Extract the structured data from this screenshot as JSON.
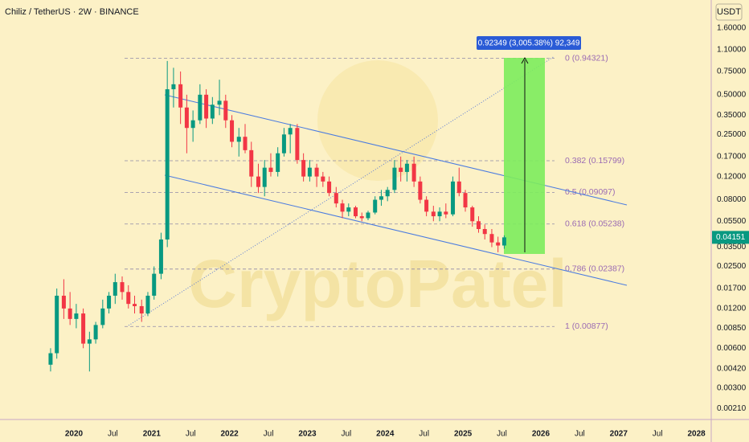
{
  "chart_data": {
    "type": "candlestick",
    "title": "Chiliz / TetherUS · 2W · BINANCE",
    "unit": "USDT",
    "watermark": "CryptoPatel",
    "log_scale": true,
    "up_color": "#089981",
    "down_color": "#f23645",
    "ylim": [
      0.00173,
      2.61
    ],
    "yticks": [
      {
        "value": 1.6,
        "label": "1.60000"
      },
      {
        "value": 1.1,
        "label": "1.10000"
      },
      {
        "value": 0.75,
        "label": "0.75000"
      },
      {
        "value": 0.5,
        "label": "0.50000"
      },
      {
        "value": 0.35,
        "label": "0.35000"
      },
      {
        "value": 0.25,
        "label": "0.25000"
      },
      {
        "value": 0.17,
        "label": "0.17000"
      },
      {
        "value": 0.12,
        "label": "0.12000"
      },
      {
        "value": 0.08,
        "label": "0.08000"
      },
      {
        "value": 0.055,
        "label": "0.05500"
      },
      {
        "value": 0.035,
        "label": "0.03500"
      },
      {
        "value": 0.025,
        "label": "0.02500"
      },
      {
        "value": 0.017,
        "label": "0.01700"
      },
      {
        "value": 0.012,
        "label": "0.01200"
      },
      {
        "value": 0.0085,
        "label": "0.00850"
      },
      {
        "value": 0.006,
        "label": "0.00600"
      },
      {
        "value": 0.0042,
        "label": "0.00420"
      },
      {
        "value": 0.003,
        "label": "0.00300"
      },
      {
        "value": 0.0021,
        "label": "0.00210"
      }
    ],
    "xlim": [
      2019.05,
      2028.19
    ],
    "xticks": [
      2020,
      {
        "value": 2020.5,
        "label": "Jul"
      },
      2021,
      {
        "value": 2021.5,
        "label": "Jul"
      },
      2022,
      {
        "value": 2022.5,
        "label": "Jul"
      },
      2023,
      {
        "value": 2023.5,
        "label": "Jul"
      },
      2024,
      {
        "value": 2024.5,
        "label": "Jul"
      },
      2025,
      {
        "value": 2025.5,
        "label": "Jul"
      },
      2026,
      {
        "value": 2026.5,
        "label": "Jul"
      },
      2027,
      {
        "value": 2027.5,
        "label": "Jul"
      },
      2028
    ],
    "x": [
      2019.7,
      2019.78,
      2019.87,
      2019.95,
      2020.03,
      2020.12,
      2020.2,
      2020.28,
      2020.37,
      2020.45,
      2020.53,
      2020.62,
      2020.7,
      2020.78,
      2020.87,
      2020.95,
      2021.03,
      2021.12,
      2021.2,
      2021.28,
      2021.37,
      2021.45,
      2021.53,
      2021.62,
      2021.7,
      2021.78,
      2021.87,
      2021.95,
      2022.03,
      2022.12,
      2022.2,
      2022.28,
      2022.37,
      2022.45,
      2022.53,
      2022.62,
      2022.7,
      2022.78,
      2022.87,
      2022.95,
      2023.03,
      2023.12,
      2023.2,
      2023.28,
      2023.37,
      2023.45,
      2023.53,
      2023.62,
      2023.7,
      2023.78,
      2023.87,
      2023.95,
      2024.03,
      2024.12,
      2024.2,
      2024.28,
      2024.37,
      2024.45,
      2024.53,
      2024.62,
      2024.7,
      2024.78,
      2024.87,
      2024.95,
      2025.03,
      2025.12,
      2025.2,
      2025.28,
      2025.37,
      2025.45,
      2025.53
    ],
    "open": [
      0.0045,
      0.0055,
      0.015,
      0.012,
      0.01,
      0.011,
      0.0065,
      0.007,
      0.009,
      0.012,
      0.015,
      0.019,
      0.016,
      0.013,
      0.0125,
      0.011,
      0.015,
      0.022,
      0.04,
      0.55,
      0.6,
      0.4,
      0.28,
      0.32,
      0.5,
      0.33,
      0.42,
      0.45,
      0.32,
      0.22,
      0.24,
      0.19,
      0.12,
      0.1,
      0.14,
      0.13,
      0.18,
      0.25,
      0.28,
      0.16,
      0.12,
      0.14,
      0.12,
      0.11,
      0.09,
      0.075,
      0.065,
      0.07,
      0.06,
      0.058,
      0.064,
      0.08,
      0.085,
      0.095,
      0.14,
      0.13,
      0.15,
      0.11,
      0.08,
      0.065,
      0.06,
      0.065,
      0.062,
      0.11,
      0.09,
      0.07,
      0.055,
      0.048,
      0.044,
      0.038,
      0.036
    ],
    "high": [
      0.006,
      0.017,
      0.02,
      0.016,
      0.013,
      0.012,
      0.008,
      0.0095,
      0.014,
      0.016,
      0.022,
      0.021,
      0.018,
      0.015,
      0.014,
      0.016,
      0.025,
      0.045,
      0.9,
      0.8,
      0.75,
      0.5,
      0.38,
      0.6,
      0.55,
      0.48,
      0.65,
      0.5,
      0.35,
      0.28,
      0.3,
      0.22,
      0.15,
      0.16,
      0.18,
      0.2,
      0.28,
      0.3,
      0.3,
      0.18,
      0.16,
      0.15,
      0.13,
      0.12,
      0.1,
      0.08,
      0.075,
      0.072,
      0.064,
      0.066,
      0.085,
      0.095,
      0.1,
      0.16,
      0.17,
      0.16,
      0.17,
      0.12,
      0.085,
      0.072,
      0.07,
      0.075,
      0.12,
      0.14,
      0.095,
      0.072,
      0.06,
      0.052,
      0.048,
      0.042,
      0.043
    ],
    "low": [
      0.004,
      0.005,
      0.01,
      0.009,
      0.0085,
      0.006,
      0.004,
      0.0065,
      0.0085,
      0.011,
      0.013,
      0.014,
      0.012,
      0.011,
      0.0095,
      0.0105,
      0.014,
      0.02,
      0.035,
      0.4,
      0.3,
      0.18,
      0.22,
      0.3,
      0.28,
      0.3,
      0.35,
      0.28,
      0.2,
      0.17,
      0.18,
      0.1,
      0.09,
      0.085,
      0.12,
      0.12,
      0.17,
      0.18,
      0.15,
      0.11,
      0.11,
      0.1,
      0.1,
      0.085,
      0.07,
      0.058,
      0.06,
      0.058,
      0.055,
      0.056,
      0.062,
      0.072,
      0.078,
      0.09,
      0.11,
      0.11,
      0.1,
      0.075,
      0.06,
      0.055,
      0.055,
      0.058,
      0.06,
      0.085,
      0.065,
      0.05,
      0.045,
      0.04,
      0.035,
      0.032,
      0.034
    ],
    "close": [
      0.0055,
      0.015,
      0.012,
      0.01,
      0.011,
      0.0065,
      0.007,
      0.009,
      0.012,
      0.015,
      0.019,
      0.016,
      0.013,
      0.0125,
      0.011,
      0.015,
      0.022,
      0.04,
      0.55,
      0.6,
      0.4,
      0.28,
      0.32,
      0.5,
      0.33,
      0.42,
      0.45,
      0.32,
      0.22,
      0.24,
      0.19,
      0.12,
      0.1,
      0.14,
      0.13,
      0.18,
      0.25,
      0.28,
      0.16,
      0.12,
      0.14,
      0.12,
      0.11,
      0.09,
      0.075,
      0.065,
      0.07,
      0.06,
      0.058,
      0.064,
      0.08,
      0.085,
      0.095,
      0.14,
      0.13,
      0.15,
      0.11,
      0.08,
      0.065,
      0.06,
      0.065,
      0.062,
      0.11,
      0.09,
      0.07,
      0.055,
      0.048,
      0.044,
      0.038,
      0.036,
      0.04151
    ],
    "last_price": 0.04151,
    "fib_levels": [
      {
        "value": 0.94321,
        "label": "0 (0.94321)"
      },
      {
        "value": 0.15799,
        "label": "0.382 (0.15799)"
      },
      {
        "value": 0.09097,
        "label": "0.5 (0.09097)"
      },
      {
        "value": 0.05238,
        "label": "0.618 (0.05238)"
      },
      {
        "value": 0.02387,
        "label": "0.786 (0.02387)"
      },
      {
        "value": 0.00877,
        "label": "1 (0.00877)"
      }
    ],
    "measure_label": "0.92349 (3,005.38%) 92,349"
  }
}
